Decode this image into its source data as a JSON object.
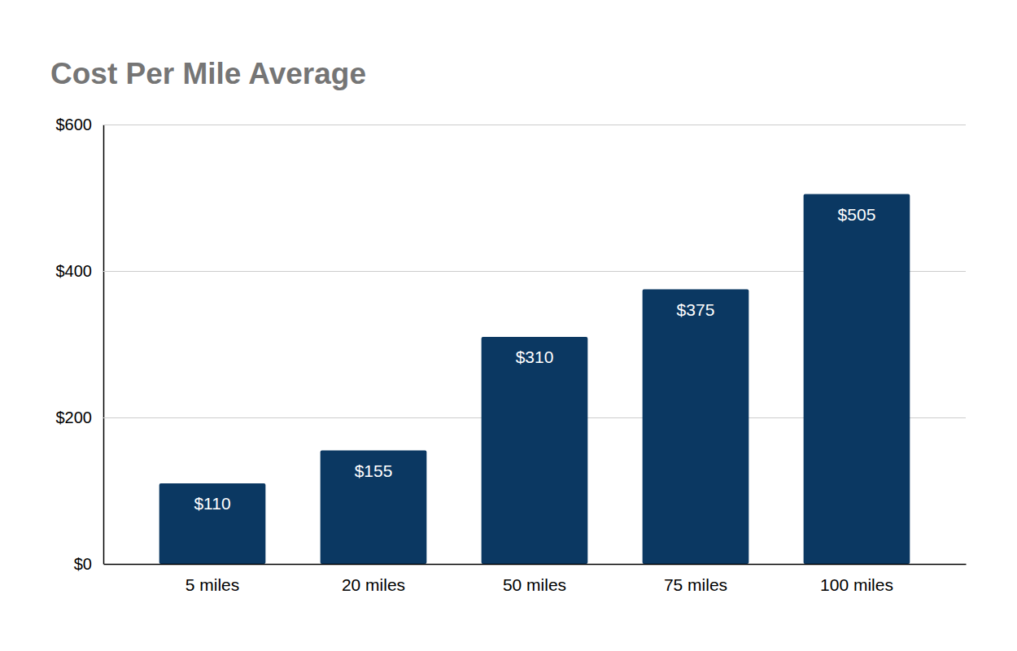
{
  "chart_data": {
    "type": "bar",
    "title": "Cost Per Mile Average",
    "categories": [
      "5 miles",
      "20 miles",
      "50 miles",
      "75 miles",
      "100 miles"
    ],
    "values": [
      110,
      155,
      310,
      375,
      505
    ],
    "value_labels": [
      "$110",
      "$155",
      "$310",
      "$375",
      "$505"
    ],
    "color": "#0b3862",
    "ylim": [
      0,
      600
    ],
    "yticks": [
      {
        "value": 0,
        "label": "$0"
      },
      {
        "value": 200,
        "label": "$200"
      },
      {
        "value": 400,
        "label": "$400"
      },
      {
        "value": 600,
        "label": "$600"
      }
    ],
    "grid": true,
    "data_labels": true
  }
}
